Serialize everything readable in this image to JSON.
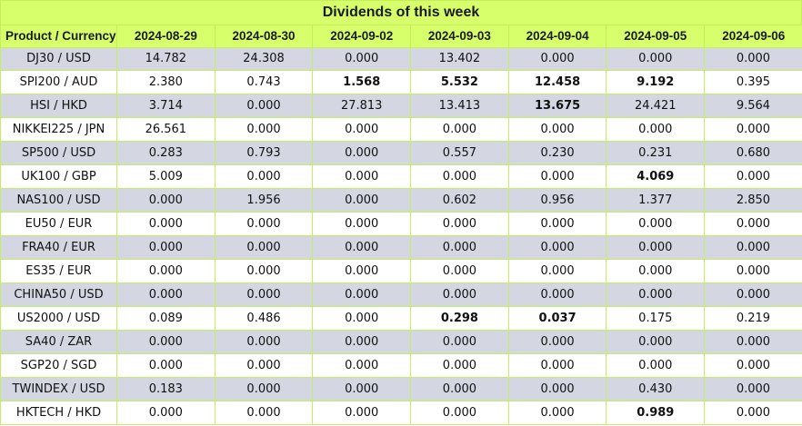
{
  "title": "Dividends of this week",
  "header_label": "Product / Currency",
  "dates": [
    "2024-08-29",
    "2024-08-30",
    "2024-09-02",
    "2024-09-03",
    "2024-09-04",
    "2024-09-05",
    "2024-09-06"
  ],
  "colors": {
    "header_bg": "#d6ff6b",
    "row_alt_bg": "#d4d7e1",
    "border": "#c4ee63"
  },
  "rows": [
    {
      "product": "DJ30 / USD",
      "values": [
        "14.782",
        "24.308",
        "0.000",
        "13.402",
        "0.000",
        "0.000",
        "0.000"
      ],
      "bold": []
    },
    {
      "product": "SPI200 / AUD",
      "values": [
        "2.380",
        "0.743",
        "1.568",
        "5.532",
        "12.458",
        "9.192",
        "0.395"
      ],
      "bold": [
        2,
        3,
        4,
        5
      ]
    },
    {
      "product": "HSI / HKD",
      "values": [
        "3.714",
        "0.000",
        "27.813",
        "13.413",
        "13.675",
        "24.421",
        "9.564"
      ],
      "bold": [
        4
      ]
    },
    {
      "product": "NIKKEI225 / JPN",
      "values": [
        "26.561",
        "0.000",
        "0.000",
        "0.000",
        "0.000",
        "0.000",
        "0.000"
      ],
      "bold": []
    },
    {
      "product": "SP500 / USD",
      "values": [
        "0.283",
        "0.793",
        "0.000",
        "0.557",
        "0.230",
        "0.231",
        "0.680"
      ],
      "bold": []
    },
    {
      "product": "UK100 / GBP",
      "values": [
        "5.009",
        "0.000",
        "0.000",
        "0.000",
        "0.000",
        "4.069",
        "0.000"
      ],
      "bold": [
        5
      ]
    },
    {
      "product": "NAS100 / USD",
      "values": [
        "0.000",
        "1.956",
        "0.000",
        "0.602",
        "0.956",
        "1.377",
        "2.850"
      ],
      "bold": []
    },
    {
      "product": "EU50 / EUR",
      "values": [
        "0.000",
        "0.000",
        "0.000",
        "0.000",
        "0.000",
        "0.000",
        "0.000"
      ],
      "bold": []
    },
    {
      "product": "FRA40 / EUR",
      "values": [
        "0.000",
        "0.000",
        "0.000",
        "0.000",
        "0.000",
        "0.000",
        "0.000"
      ],
      "bold": []
    },
    {
      "product": "ES35 / EUR",
      "values": [
        "0.000",
        "0.000",
        "0.000",
        "0.000",
        "0.000",
        "0.000",
        "0.000"
      ],
      "bold": []
    },
    {
      "product": "CHINA50 / USD",
      "values": [
        "0.000",
        "0.000",
        "0.000",
        "0.000",
        "0.000",
        "0.000",
        "0.000"
      ],
      "bold": []
    },
    {
      "product": "US2000 / USD",
      "values": [
        "0.089",
        "0.486",
        "0.000",
        "0.298",
        "0.037",
        "0.175",
        "0.219"
      ],
      "bold": [
        3,
        4
      ]
    },
    {
      "product": "SA40 / ZAR",
      "values": [
        "0.000",
        "0.000",
        "0.000",
        "0.000",
        "0.000",
        "0.000",
        "0.000"
      ],
      "bold": []
    },
    {
      "product": "SGP20 / SGD",
      "values": [
        "0.000",
        "0.000",
        "0.000",
        "0.000",
        "0.000",
        "0.000",
        "0.000"
      ],
      "bold": []
    },
    {
      "product": "TWINDEX / USD",
      "values": [
        "0.183",
        "0.000",
        "0.000",
        "0.000",
        "0.000",
        "0.430",
        "0.000"
      ],
      "bold": []
    },
    {
      "product": "HKTECH / HKD",
      "values": [
        "0.000",
        "0.000",
        "0.000",
        "0.000",
        "0.000",
        "0.989",
        "0.000"
      ],
      "bold": [
        5
      ]
    }
  ]
}
